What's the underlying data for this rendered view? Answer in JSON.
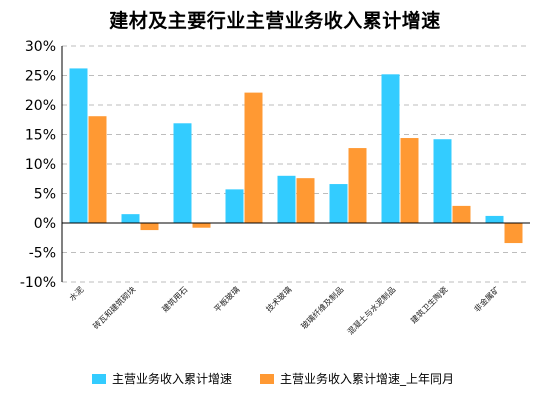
{
  "chart_data": {
    "type": "bar",
    "title": "建材及主要行业主营业务收入累计增速",
    "categories": [
      "水泥",
      "砖瓦和建筑砌块",
      "建筑用石",
      "平板玻璃",
      "技术玻璃",
      "玻璃纤维及制品",
      "混凝土与水泥制品",
      "建筑卫生陶瓷",
      "非金属矿"
    ],
    "series": [
      {
        "name": "主营业务收入累计增速",
        "color": "#33ccff",
        "values": [
          26.2,
          1.5,
          16.9,
          5.7,
          8.0,
          6.6,
          25.2,
          14.2,
          1.2
        ]
      },
      {
        "name": "主营业务收入累计增速_上年同月",
        "color": "#ff9933",
        "values": [
          18.1,
          -1.2,
          -0.8,
          22.1,
          7.6,
          12.7,
          14.4,
          2.9,
          -3.4
        ]
      }
    ],
    "ylim": [
      -10,
      30
    ],
    "yticks": [
      "-10%",
      "-5%",
      "0%",
      "5%",
      "10%",
      "15%",
      "20%",
      "25%",
      "30%"
    ],
    "ytick_values": [
      -10,
      -5,
      0,
      5,
      10,
      15,
      20,
      25,
      30
    ],
    "grid": true,
    "legend": "bottom"
  }
}
